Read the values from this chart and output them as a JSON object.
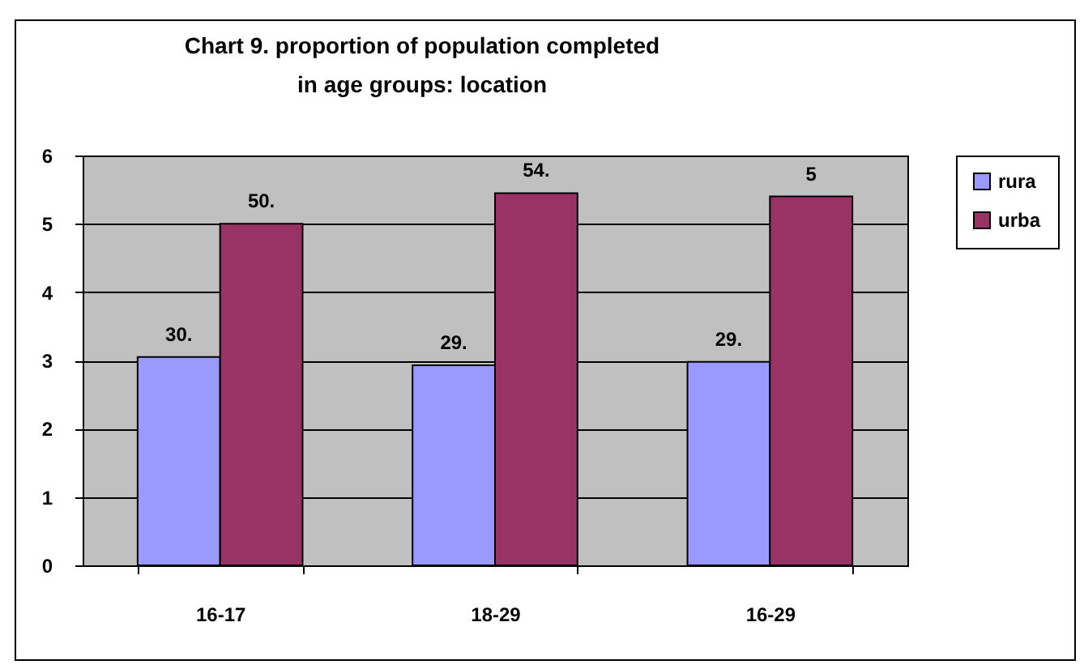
{
  "chart_data": {
    "type": "bar",
    "title": "Chart 9. proportion of population completed\nin  age groups: location",
    "categories": [
      "16-17",
      "18-29",
      "16-29"
    ],
    "series": [
      {
        "name": "rura",
        "color": "#9999ff",
        "values": [
          3.05,
          2.93,
          2.98
        ]
      },
      {
        "name": "urba",
        "color": "#993366",
        "values": [
          5.0,
          5.45,
          5.4
        ]
      }
    ],
    "annotations": [
      {
        "text": "30.",
        "x": "16-17",
        "y": 3.05
      },
      {
        "text": "29.",
        "x": "18-29",
        "y": 2.93
      },
      {
        "text": "29.",
        "x": "16-29",
        "y": 2.98
      },
      {
        "text": "50.",
        "x": "16-17",
        "y": 5.0
      },
      {
        "text": "54.",
        "x": "18-29",
        "y": 5.45
      },
      {
        "text": "5",
        "x": "16-29",
        "y": 5.4
      }
    ],
    "ylim": [
      0,
      6
    ],
    "yticks": [
      0,
      1,
      2,
      3,
      4,
      5,
      6
    ],
    "grid": "y",
    "legend": "right"
  }
}
